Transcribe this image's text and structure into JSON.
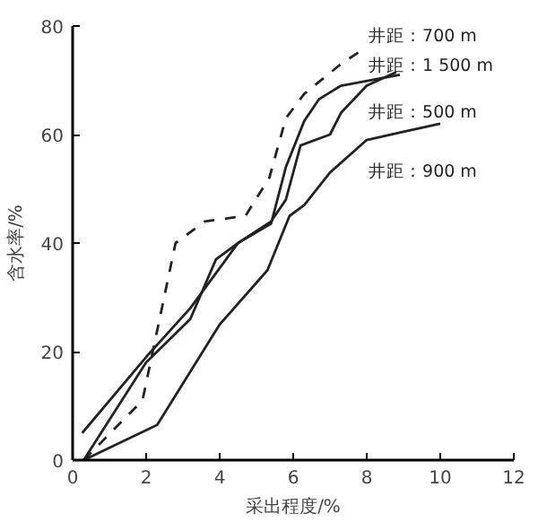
{
  "chart_data": {
    "type": "line",
    "xlabel": "采出程度/%",
    "ylabel": "含水率/%",
    "xlim": [
      0,
      12
    ],
    "ylim": [
      0,
      80
    ],
    "xticks": [
      0,
      2,
      4,
      6,
      8,
      10,
      12
    ],
    "yticks": [
      0,
      20,
      40,
      60,
      80
    ],
    "grid": false,
    "marker": "none",
    "series": [
      {
        "name": "井距：700 m",
        "color": "#222222",
        "line_style": "dashed",
        "x": [
          0.3,
          1.9,
          2.8,
          3.6,
          4.7,
          5.35,
          5.8,
          6.3,
          7.3,
          7.9
        ],
        "values": [
          0,
          11,
          40,
          44,
          45,
          52,
          63,
          67.5,
          73,
          75.7
        ]
      },
      {
        "name": "井距：1 500 m",
        "color": "#222222",
        "line_style": "solid",
        "x": [
          0.26,
          2,
          3.2,
          4.5,
          5.4,
          5.8,
          6.3,
          6.7,
          7.3,
          8.9
        ],
        "values": [
          5,
          19,
          28,
          40,
          43.6,
          54,
          62.5,
          66.5,
          69,
          71
        ]
      },
      {
        "name": "井距：500 m",
        "color": "#222222",
        "line_style": "solid",
        "x": [
          0.3,
          2,
          3.2,
          3.9,
          4.5,
          5.4,
          5.8,
          6.2,
          7,
          7.3,
          8,
          8.8
        ],
        "values": [
          0,
          18,
          26,
          37,
          40,
          44,
          48,
          58,
          60,
          64,
          69,
          71.5
        ]
      },
      {
        "name": "井距：900 m",
        "color": "#222222",
        "line_style": "solid",
        "x": [
          0.3,
          2.3,
          4,
          5.3,
          5.9,
          6.3,
          7,
          8,
          9,
          10
        ],
        "values": [
          0,
          6.5,
          25,
          35,
          45,
          47,
          53,
          59,
          60.5,
          62
        ]
      }
    ]
  }
}
